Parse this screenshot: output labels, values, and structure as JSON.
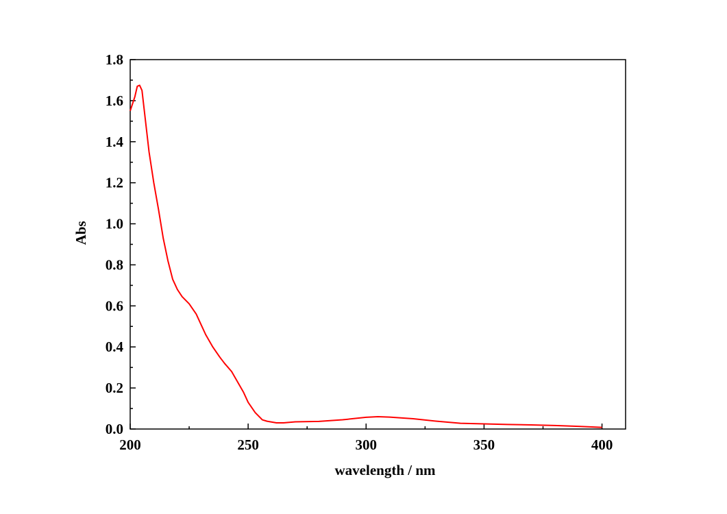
{
  "chart_data": {
    "type": "line",
    "xlabel": "wavelength / nm",
    "ylabel": "Abs",
    "series": [
      {
        "color": "#ff0000",
        "x": [
          200,
          202,
          203,
          204,
          205,
          206,
          207,
          208,
          210,
          212,
          214,
          216,
          218,
          220,
          222,
          225,
          228,
          230,
          232,
          235,
          238,
          240,
          243,
          245,
          248,
          250,
          253,
          256,
          258,
          262,
          265,
          270,
          280,
          290,
          300,
          305,
          310,
          320,
          330,
          340,
          350,
          360,
          370,
          380,
          390,
          400
        ],
        "values": [
          1.55,
          1.62,
          1.67,
          1.675,
          1.65,
          1.55,
          1.45,
          1.35,
          1.2,
          1.07,
          0.93,
          0.82,
          0.73,
          0.68,
          0.645,
          0.61,
          0.56,
          0.51,
          0.46,
          0.4,
          0.35,
          0.32,
          0.28,
          0.24,
          0.18,
          0.13,
          0.08,
          0.045,
          0.038,
          0.03,
          0.03,
          0.035,
          0.037,
          0.045,
          0.057,
          0.06,
          0.058,
          0.05,
          0.038,
          0.028,
          0.025,
          0.022,
          0.02,
          0.017,
          0.013,
          0.008
        ]
      }
    ],
    "xlim": [
      200,
      410
    ],
    "xticks": [
      200,
      250,
      300,
      350,
      400
    ],
    "xminorticks": [
      225,
      275,
      325,
      375
    ],
    "ylim": [
      0,
      1.8
    ],
    "yticks": [
      {
        "value": 0,
        "label": "0.0"
      },
      0.2,
      0.4,
      0.6,
      0.8,
      {
        "value": 1,
        "label": "1.0"
      },
      1.2,
      1.4,
      1.6,
      1.8
    ],
    "yminorticks": [
      0.1,
      0.3,
      0.5,
      0.7,
      0.9,
      1.1,
      1.3,
      1.5,
      1.7
    ]
  }
}
